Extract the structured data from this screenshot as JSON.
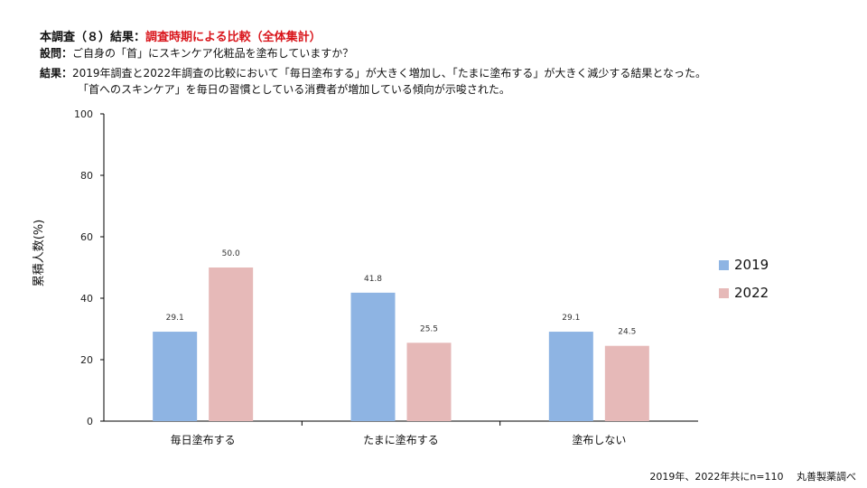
{
  "header": {
    "title_prefix": "本調査（８）結果：",
    "title_highlight": "調査時期による比較（全体集計）",
    "question_label": "設問：",
    "question_text": "ご自身の「首」にスキンケア化粧品を塗布していますか？",
    "result_label": "結果：",
    "result_line1": "2019年調査と2022年調査の比較において「毎日塗布する」が大きく増加し、「たまに塗布する」が大きく減少する結果となった。",
    "result_line2": "「首へのスキンケア」を毎日の習慣としている消費者が増加している傾向が示唆された。"
  },
  "footer": "2019年、2022年共にn=110　 丸善製薬調べ",
  "colors": {
    "s2019": "#8eb4e3",
    "s2022": "#e6b9b8",
    "title_accent": "#d9151b"
  },
  "chart_data": {
    "type": "bar",
    "ylabel": "累積人数(%)",
    "ylim": [
      0,
      100
    ],
    "yticks": [
      "0",
      "20",
      "40",
      "60",
      "80",
      "100"
    ],
    "categories": [
      "毎日塗布する",
      "たまに塗布する",
      "塗布しない"
    ],
    "series": [
      {
        "name": "2019",
        "values": [
          29.1,
          41.8,
          29.1
        ],
        "labels": [
          "29.1",
          "41.8",
          "29.1"
        ]
      },
      {
        "name": "2022",
        "values": [
          50.0,
          25.5,
          24.5
        ],
        "labels": [
          "50.0",
          "25.5",
          "24.5"
        ]
      }
    ],
    "legend": "right",
    "grid": false
  }
}
